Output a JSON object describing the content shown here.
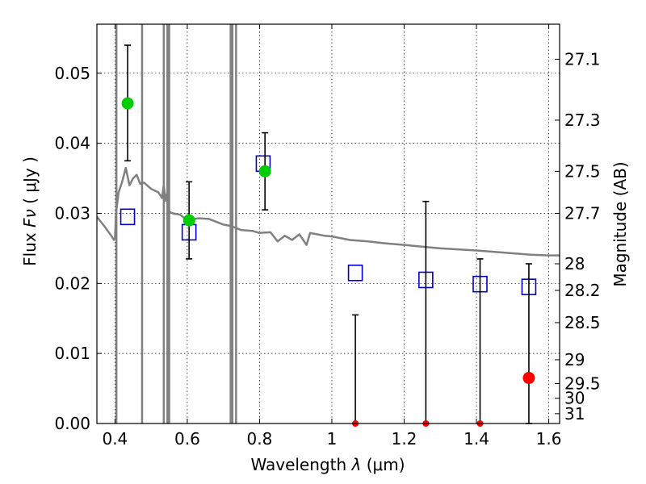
{
  "chart_data": {
    "type": "scatter",
    "xlabel_prefix": "Wavelength",
    "xlabel_symbol": "λ",
    "xlabel_unit": "(μm)",
    "ylabel_prefix": "Flux",
    "ylabel_symbol": "Fν",
    "ylabel_unit": "( μJy )",
    "y2label": "Magnitude (AB)",
    "xlim": [
      0.35,
      1.63
    ],
    "ylim": [
      0.0,
      0.057
    ],
    "grid": true,
    "x_ticks": [
      0.4,
      0.6,
      0.8,
      1.0,
      1.2,
      1.4,
      1.6
    ],
    "x_tick_labels": [
      "0.4",
      "0.6",
      "0.8",
      "1",
      "1.2",
      "1.4",
      "1.6"
    ],
    "y_ticks": [
      0.0,
      0.01,
      0.02,
      0.03,
      0.04,
      0.05
    ],
    "y_tick_labels": [
      "0.00",
      "0.01",
      "0.02",
      "0.03",
      "0.04",
      "0.05"
    ],
    "y2_ticks": [
      {
        "label": "27.1",
        "flux": 0.052
      },
      {
        "label": "27.3",
        "flux": 0.0433
      },
      {
        "label": "27.5",
        "flux": 0.036
      },
      {
        "label": "27.7",
        "flux": 0.03
      },
      {
        "label": "28",
        "flux": 0.0228
      },
      {
        "label": "28.2",
        "flux": 0.019
      },
      {
        "label": "28.5",
        "flux": 0.0144
      },
      {
        "label": "29",
        "flux": 0.0091
      },
      {
        "label": "29.5",
        "flux": 0.0057
      },
      {
        "label": "30",
        "flux": 0.0036
      },
      {
        "label": "31",
        "flux": 0.0014
      }
    ],
    "series": [
      {
        "kind": "model",
        "color": "#808080",
        "x": [
          0.35,
          0.37,
          0.39,
          0.397,
          0.4,
          0.403,
          0.41,
          0.42,
          0.43,
          0.44,
          0.45,
          0.46,
          0.47,
          0.48,
          0.5,
          0.52,
          0.53,
          0.535,
          0.54,
          0.545,
          0.55,
          0.56,
          0.58,
          0.6,
          0.63,
          0.66,
          0.7,
          0.72,
          0.75,
          0.78,
          0.8,
          0.83,
          0.85,
          0.87,
          0.89,
          0.91,
          0.93,
          0.94,
          0.96,
          0.98,
          1.0,
          1.05,
          1.1,
          1.15,
          1.2,
          1.3,
          1.4,
          1.5,
          1.55,
          1.6,
          1.63
        ],
        "y": [
          0.0295,
          0.0282,
          0.0268,
          0.0262,
          0.0265,
          0.03,
          0.033,
          0.0345,
          0.0365,
          0.034,
          0.035,
          0.0355,
          0.0342,
          0.0344,
          0.0335,
          0.033,
          0.0322,
          0.034,
          0.0318,
          0.033,
          0.0302,
          0.03,
          0.0298,
          0.029,
          0.0293,
          0.0292,
          0.0284,
          0.0282,
          0.0276,
          0.0275,
          0.0272,
          0.0273,
          0.026,
          0.0268,
          0.0262,
          0.027,
          0.0255,
          0.0272,
          0.027,
          0.0268,
          0.0267,
          0.0262,
          0.026,
          0.0257,
          0.0255,
          0.025,
          0.0247,
          0.0243,
          0.0241,
          0.024,
          0.024
        ]
      },
      {
        "kind": "model_spikes",
        "color": "#808080",
        "x": [
          0.404,
          0.475,
          0.535,
          0.545,
          0.55,
          0.72,
          0.725,
          0.735
        ]
      },
      {
        "kind": "model_points",
        "marker": "open-square",
        "color": "#0000cc",
        "x": [
          0.435,
          0.605,
          0.81,
          1.065,
          1.26,
          1.41,
          1.545
        ],
        "y": [
          0.0295,
          0.0273,
          0.0371,
          0.0215,
          0.0205,
          0.0199,
          0.0195
        ]
      },
      {
        "kind": "detections",
        "marker": "filled-circle",
        "color": "#00cc00",
        "x": [
          0.435,
          0.605,
          0.815
        ],
        "y": [
          0.0457,
          0.029,
          0.036
        ],
        "err_lo": [
          0.0375,
          0.0235,
          0.0305
        ],
        "err_hi": [
          0.054,
          0.0345,
          0.0415
        ]
      },
      {
        "kind": "non_detections",
        "marker": "filled-circle",
        "color": "#ff0000",
        "x": [
          1.065,
          1.26,
          1.41,
          1.545
        ],
        "y": [
          0.0,
          0.0,
          0.0,
          0.0065
        ],
        "err_lo": [
          0.0,
          0.0,
          0.0,
          0.0
        ],
        "err_hi": [
          0.0155,
          0.0317,
          0.0235,
          0.0228
        ]
      }
    ]
  }
}
